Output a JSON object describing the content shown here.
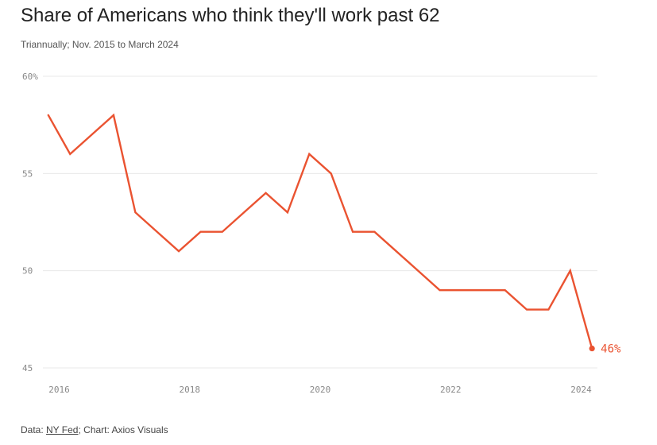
{
  "title": "Share of Americans who think they'll work past 62",
  "subtitle": "Triannually; Nov. 2015 to March 2024",
  "footer": {
    "prefix": "Data: ",
    "source": "NY Fed",
    "suffix": "; Chart: Axios Visuals"
  },
  "colors": {
    "line": "#ea5331",
    "grid": "#e8e8e8",
    "axis_text": "#888888"
  },
  "chart_data": {
    "type": "line",
    "title": "Share of Americans who think they'll work past 62",
    "subtitle": "Triannually; Nov. 2015 to March 2024",
    "xlabel": "",
    "ylabel": "",
    "ylim": [
      45,
      60
    ],
    "y_ticks": [
      {
        "value": 60,
        "label": "60%"
      },
      {
        "value": 55,
        "label": "55"
      },
      {
        "value": 50,
        "label": "50"
      },
      {
        "value": 45,
        "label": "45"
      }
    ],
    "xlim": [
      2015.75,
      2024.25
    ],
    "x_ticks": [
      {
        "value": 2016,
        "label": "2016"
      },
      {
        "value": 2018,
        "label": "2018"
      },
      {
        "value": 2020,
        "label": "2020"
      },
      {
        "value": 2022,
        "label": "2022"
      },
      {
        "value": 2024,
        "label": "2024"
      }
    ],
    "grid": "horizontal",
    "series": [
      {
        "x": [
          "Nov 2015",
          "Mar 2016",
          "Jul 2016",
          "Nov 2016",
          "Mar 2017",
          "Jul 2017",
          "Nov 2017",
          "Mar 2018",
          "Jul 2018",
          "Nov 2018",
          "Mar 2019",
          "Jul 2019",
          "Nov 2019",
          "Mar 2020",
          "Jul 2020",
          "Nov 2020",
          "Mar 2021",
          "Jul 2021",
          "Nov 2021",
          "Mar 2022",
          "Jul 2022",
          "Nov 2022",
          "Mar 2023",
          "Jul 2023",
          "Nov 2023",
          "Mar 2024"
        ],
        "x_numeric": [
          2015.833,
          2016.167,
          2016.5,
          2016.833,
          2017.167,
          2017.5,
          2017.833,
          2018.167,
          2018.5,
          2018.833,
          2019.167,
          2019.5,
          2019.833,
          2020.167,
          2020.5,
          2020.833,
          2021.167,
          2021.5,
          2021.833,
          2022.167,
          2022.5,
          2022.833,
          2023.167,
          2023.5,
          2023.833,
          2024.167
        ],
        "values": [
          58,
          56,
          57,
          58,
          53,
          52,
          51,
          52,
          52,
          53,
          54,
          53,
          56,
          55,
          52,
          52,
          51,
          50,
          49,
          49,
          49,
          49,
          48,
          48,
          50,
          46
        ]
      }
    ],
    "annotations": [
      {
        "label": "46%",
        "series_index": 0,
        "point": "last"
      }
    ]
  }
}
